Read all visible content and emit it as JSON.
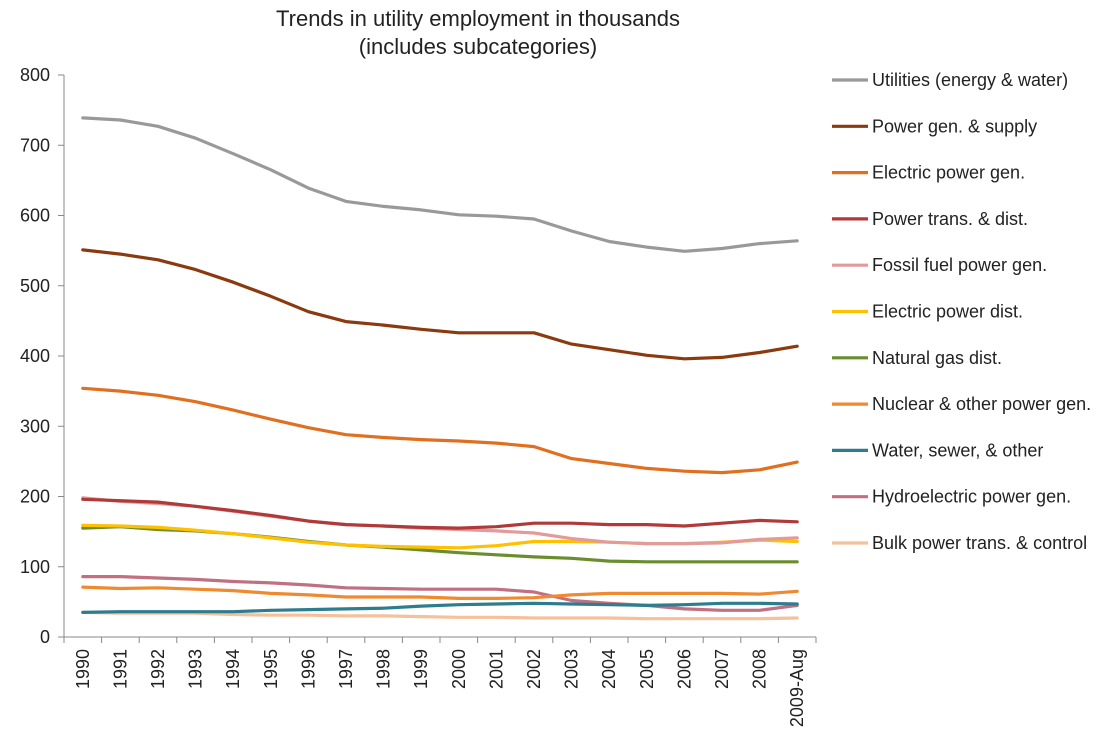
{
  "chart_data": {
    "type": "line",
    "title": [
      "Trends in utility employment in thousands",
      "(includes subcategories)"
    ],
    "xlabel": "",
    "ylabel": "",
    "ylim": [
      0,
      800
    ],
    "yticks": [
      0,
      100,
      200,
      300,
      400,
      500,
      600,
      700,
      800
    ],
    "grid": false,
    "legend_position": "right",
    "categories": [
      "1990",
      "1991",
      "1992",
      "1993",
      "1994",
      "1995",
      "1996",
      "1997",
      "1998",
      "1999",
      "2000",
      "2001",
      "2002",
      "2003",
      "2004",
      "2005",
      "2006",
      "2007",
      "2008",
      "2009-Aug"
    ],
    "series": [
      {
        "name": "Utilities (energy & water)",
        "color": "#999999",
        "values": [
          739,
          736,
          727,
          710,
          688,
          665,
          639,
          620,
          613,
          608,
          601,
          599,
          595,
          578,
          563,
          555,
          549,
          553,
          560,
          564
        ]
      },
      {
        "name": "Power gen. & supply",
        "color": "#8B3A0F",
        "values": [
          551,
          545,
          537,
          523,
          505,
          485,
          463,
          449,
          444,
          438,
          433,
          433,
          433,
          417,
          409,
          401,
          396,
          398,
          405,
          414
        ]
      },
      {
        "name": "Electric power gen.",
        "color": "#E07020",
        "values": [
          354,
          350,
          344,
          335,
          323,
          310,
          298,
          288,
          284,
          281,
          279,
          276,
          271,
          254,
          247,
          240,
          236,
          234,
          238,
          249
        ]
      },
      {
        "name": "Power trans. & dist.",
        "color": "#B03A3A",
        "values": [
          196,
          194,
          192,
          186,
          180,
          173,
          165,
          160,
          158,
          156,
          155,
          157,
          162,
          162,
          160,
          160,
          158,
          162,
          166,
          164
        ]
      },
      {
        "name": "Fossil fuel power gen.",
        "color": "#E29A9A",
        "values": [
          198,
          193,
          190,
          186,
          179,
          172,
          165,
          160,
          158,
          155,
          153,
          151,
          148,
          140,
          135,
          133,
          133,
          134,
          139,
          141
        ]
      },
      {
        "name": "Electric power dist.",
        "color": "#FFC000",
        "values": [
          159,
          158,
          156,
          152,
          147,
          141,
          135,
          131,
          129,
          128,
          127,
          130,
          136,
          136,
          135,
          133,
          133,
          135,
          138,
          136
        ]
      },
      {
        "name": "Natural gas dist.",
        "color": "#6A8E2E",
        "values": [
          155,
          157,
          153,
          151,
          147,
          142,
          136,
          131,
          128,
          124,
          120,
          117,
          114,
          112,
          108,
          107,
          107,
          107,
          107,
          107
        ]
      },
      {
        "name": "Nuclear & other power gen.",
        "color": "#F08A30",
        "values": [
          71,
          69,
          70,
          68,
          66,
          62,
          60,
          57,
          57,
          57,
          55,
          55,
          56,
          60,
          62,
          62,
          62,
          62,
          61,
          65
        ]
      },
      {
        "name": "Water, sewer, & other",
        "color": "#2E7D8E",
        "values": [
          35,
          36,
          36,
          36,
          36,
          38,
          39,
          40,
          41,
          44,
          46,
          47,
          48,
          47,
          46,
          45,
          46,
          48,
          48,
          47
        ]
      },
      {
        "name": "Hydroelectric power gen.",
        "color": "#C07080",
        "values": [
          86,
          86,
          84,
          82,
          79,
          77,
          74,
          70,
          69,
          68,
          68,
          68,
          64,
          52,
          48,
          45,
          40,
          38,
          38,
          45
        ]
      },
      {
        "name": "Bulk power trans. & control",
        "color": "#F5C09A",
        "values": [
          35,
          34,
          34,
          34,
          32,
          31,
          31,
          30,
          30,
          29,
          28,
          28,
          27,
          27,
          27,
          26,
          26,
          26,
          26,
          27
        ]
      }
    ]
  }
}
